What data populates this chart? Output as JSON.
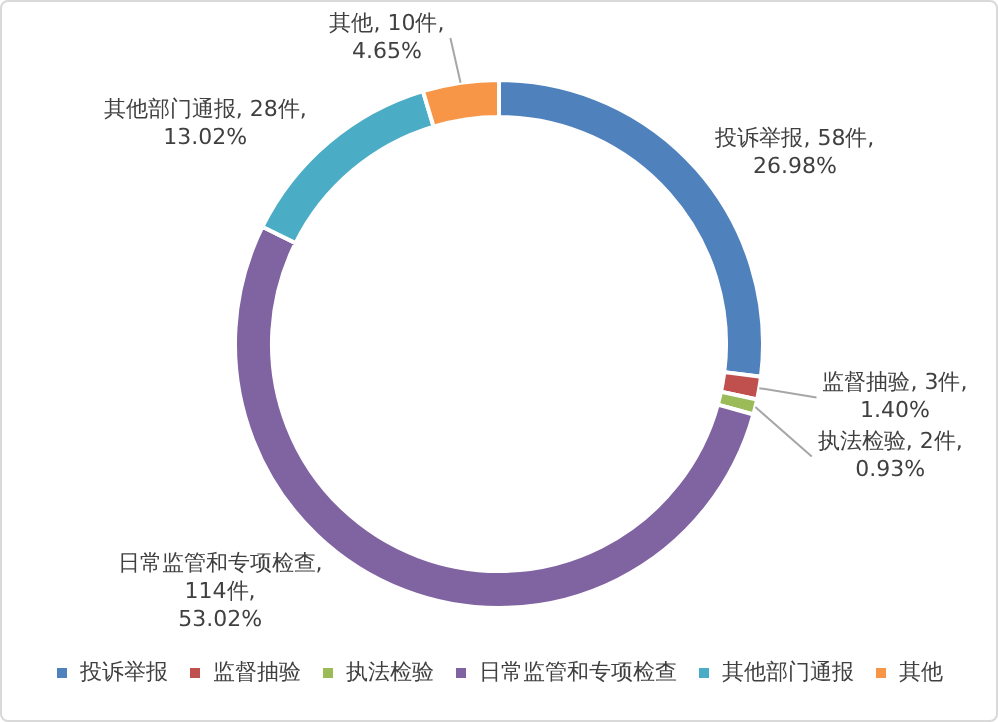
{
  "chart_data": {
    "type": "donut",
    "categories": [
      "投诉举报",
      "监督抽验",
      "执法检验",
      "日常监管和专项检查",
      "其他部门通报",
      "其他"
    ],
    "values": [
      58,
      3,
      2,
      114,
      28,
      10
    ],
    "colors": [
      "#4f81bd",
      "#c0504d",
      "#9bbb59",
      "#8064a2",
      "#4bacc6",
      "#f79646"
    ],
    "value_labels": [
      "投诉举报, 58件, 26.98%",
      "监督抽验, 3件, 1.40%",
      "执法检验, 2件, 0.93%",
      "日常监管和专项检查, 114件, 53.02%",
      "其他部门通报, 28件, 13.02%",
      "其他, 10件, 4.65%"
    ],
    "legend": "bottom"
  }
}
